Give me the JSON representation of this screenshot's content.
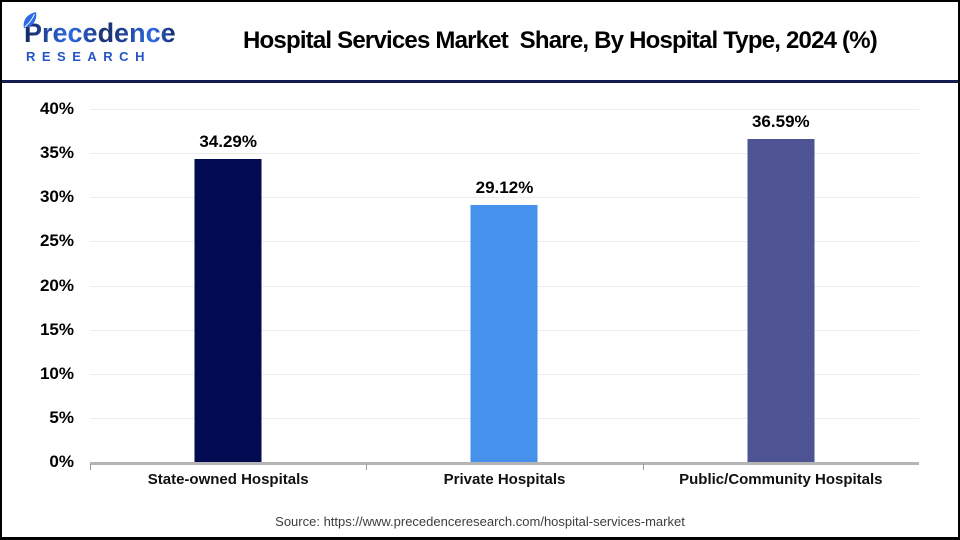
{
  "header": {
    "logo": {
      "name": "Precedence",
      "subtitle": "RESEARCH",
      "leaf_color": "#2d6ae3",
      "name_color_navy": "#1c2f6e",
      "name_color_blue": "#2d6ae3"
    },
    "title": "Hospital Services Market  Share, By Hospital Type, 2024 (%)"
  },
  "chart_data": {
    "type": "bar",
    "title": "Hospital Services Market  Share, By Hospital Type, 2024 (%)",
    "categories": [
      "State-owned Hospitals",
      "Private Hospitals",
      "Public/Community Hospitals"
    ],
    "values": [
      34.29,
      29.12,
      36.59
    ],
    "value_labels": [
      "34.29%",
      "29.12%",
      "36.59%"
    ],
    "bar_colors": [
      "#020b52",
      "#4591eb",
      "#4e5493"
    ],
    "xlabel": "",
    "ylabel": "",
    "ylim": [
      0,
      40
    ],
    "ytick_step": 5,
    "ytick_labels": [
      "0%",
      "5%",
      "10%",
      "15%",
      "20%",
      "25%",
      "30%",
      "35%",
      "40%"
    ],
    "grid": true,
    "gridline_color": "#ededed",
    "axis_line_color": "#b5b5b5",
    "legend": "none"
  },
  "footer": {
    "source": "Source: https://www.precedenceresearch.com/hospital-services-market"
  },
  "colors": {
    "divider": "#141b4d",
    "frame_border": "#000000",
    "background": "#ffffff"
  }
}
